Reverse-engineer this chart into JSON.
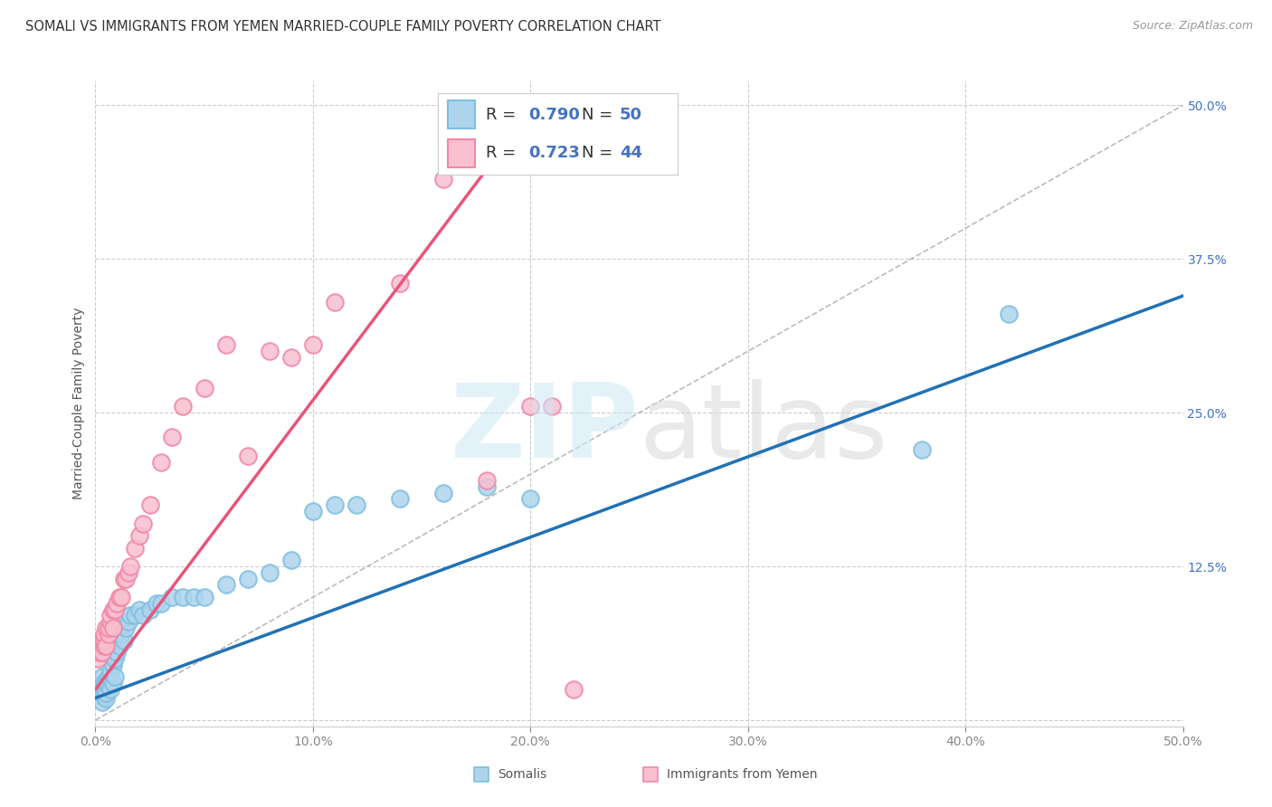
{
  "title": "SOMALI VS IMMIGRANTS FROM YEMEN MARRIED-COUPLE FAMILY POVERTY CORRELATION CHART",
  "source": "Source: ZipAtlas.com",
  "ylabel": "Married-Couple Family Poverty",
  "xlim": [
    0,
    0.5
  ],
  "ylim": [
    -0.005,
    0.52
  ],
  "xticks": [
    0.0,
    0.1,
    0.2,
    0.3,
    0.4,
    0.5
  ],
  "yticks": [
    0.0,
    0.125,
    0.25,
    0.375,
    0.5
  ],
  "xticklabels": [
    "0.0%",
    "10.0%",
    "20.0%",
    "30.0%",
    "40.0%",
    "50.0%"
  ],
  "yticklabels": [
    "",
    "12.5%",
    "25.0%",
    "37.5%",
    "50.0%"
  ],
  "somali_edge": "#7fbfdf",
  "somali_fill": "#aed4ed",
  "yemen_edge": "#f088a8",
  "yemen_fill": "#f8c0d0",
  "somali_R": "0.790",
  "somali_N": "50",
  "yemen_R": "0.723",
  "yemen_N": "44",
  "blue_line_x0": 0.0,
  "blue_line_y0": 0.018,
  "blue_line_x1": 0.5,
  "blue_line_y1": 0.345,
  "pink_line_x0": 0.0,
  "pink_line_y0": 0.025,
  "pink_line_x1": 0.185,
  "pink_line_y1": 0.46,
  "somali_x": [
    0.001,
    0.002,
    0.002,
    0.003,
    0.003,
    0.003,
    0.004,
    0.004,
    0.005,
    0.005,
    0.005,
    0.006,
    0.006,
    0.007,
    0.007,
    0.008,
    0.008,
    0.009,
    0.009,
    0.01,
    0.01,
    0.011,
    0.012,
    0.013,
    0.014,
    0.015,
    0.016,
    0.018,
    0.02,
    0.022,
    0.025,
    0.028,
    0.03,
    0.035,
    0.04,
    0.045,
    0.05,
    0.06,
    0.07,
    0.08,
    0.09,
    0.1,
    0.11,
    0.12,
    0.14,
    0.16,
    0.18,
    0.2,
    0.38,
    0.42
  ],
  "somali_y": [
    0.025,
    0.02,
    0.03,
    0.015,
    0.025,
    0.035,
    0.02,
    0.03,
    0.018,
    0.022,
    0.03,
    0.028,
    0.035,
    0.025,
    0.04,
    0.03,
    0.045,
    0.035,
    0.05,
    0.055,
    0.065,
    0.06,
    0.07,
    0.065,
    0.075,
    0.08,
    0.085,
    0.085,
    0.09,
    0.085,
    0.09,
    0.095,
    0.095,
    0.1,
    0.1,
    0.1,
    0.1,
    0.11,
    0.115,
    0.12,
    0.13,
    0.17,
    0.175,
    0.175,
    0.18,
    0.185,
    0.19,
    0.18,
    0.22,
    0.33
  ],
  "yemen_x": [
    0.001,
    0.002,
    0.002,
    0.003,
    0.003,
    0.004,
    0.004,
    0.004,
    0.005,
    0.005,
    0.006,
    0.006,
    0.007,
    0.007,
    0.008,
    0.008,
    0.009,
    0.01,
    0.011,
    0.012,
    0.013,
    0.014,
    0.015,
    0.016,
    0.018,
    0.02,
    0.022,
    0.025,
    0.03,
    0.035,
    0.04,
    0.05,
    0.06,
    0.07,
    0.08,
    0.09,
    0.1,
    0.11,
    0.14,
    0.16,
    0.18,
    0.2,
    0.21,
    0.22
  ],
  "yemen_y": [
    0.05,
    0.055,
    0.06,
    0.055,
    0.065,
    0.06,
    0.065,
    0.07,
    0.06,
    0.075,
    0.07,
    0.075,
    0.08,
    0.085,
    0.075,
    0.09,
    0.09,
    0.095,
    0.1,
    0.1,
    0.115,
    0.115,
    0.12,
    0.125,
    0.14,
    0.15,
    0.16,
    0.175,
    0.21,
    0.23,
    0.255,
    0.27,
    0.305,
    0.215,
    0.3,
    0.295,
    0.305,
    0.34,
    0.355,
    0.44,
    0.195,
    0.255,
    0.255,
    0.025
  ],
  "bg_color": "#ffffff",
  "grid_color": "#cccccc",
  "blue_line_color": "#2171b5",
  "pink_line_color": "#e8557a"
}
